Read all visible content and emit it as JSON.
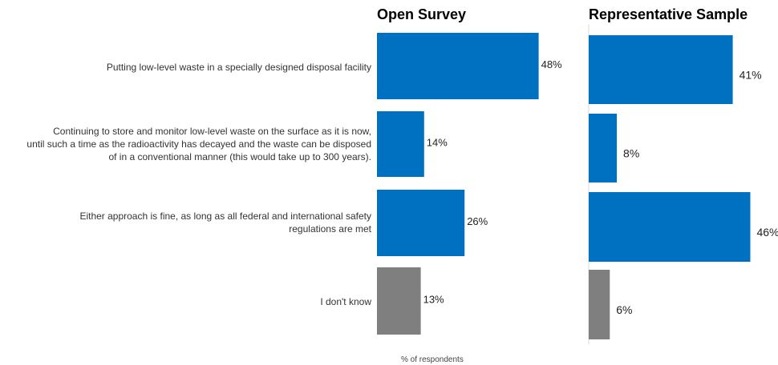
{
  "chart_data": {
    "type": "bar",
    "orientation": "horizontal",
    "categories": [
      [
        "Putting low-level waste in a specially designed disposal facility"
      ],
      [
        "Continuing to store and monitor low-level waste on the surface as it is now,",
        "until such a time as the radioactivity has decayed and the waste can be disposed",
        "of in a conventional manner (this would take up to 300 years)."
      ],
      [
        "Either approach is fine, as long as all federal and international safety",
        "regulations are met"
      ],
      [
        "I don't know"
      ]
    ],
    "xlabel": "% of respondents",
    "panels": [
      {
        "title": "Open Survey",
        "values": [
          48,
          14,
          26,
          13
        ],
        "labels": [
          "48%",
          "14%",
          "26%",
          "13%"
        ]
      },
      {
        "title": "Representative Sample",
        "values": [
          41,
          8,
          46,
          6
        ],
        "labels": [
          "41%",
          "8%",
          "46%",
          "6%"
        ]
      }
    ],
    "colors": [
      "#0070c0",
      "#0070c0",
      "#0070c0",
      "#7f7f7f"
    ]
  }
}
